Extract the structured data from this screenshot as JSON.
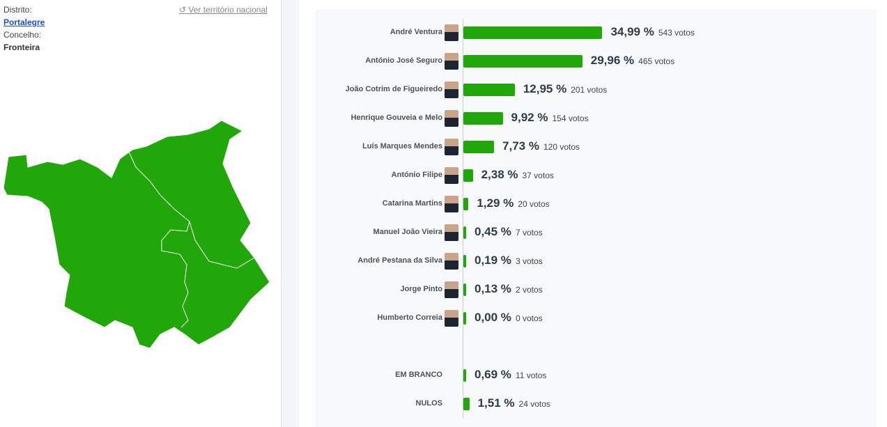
{
  "location": {
    "district_label": "Distrito:",
    "district": "Portalegre",
    "concelho_label": "Concelho:",
    "concelho": "Fronteira",
    "national_link": "Ver território nacional"
  },
  "colors": {
    "bar": "#22a70a",
    "map": "#22a70a",
    "link": "#1a4fd0"
  },
  "results": [
    {
      "name": "André Ventura",
      "pct": "34,99 %",
      "value": 34.99,
      "votes": "543 votos"
    },
    {
      "name": "António José Seguro",
      "pct": "29,96 %",
      "value": 29.96,
      "votes": "465 votos"
    },
    {
      "name": "João Cotrim de Figueiredo",
      "pct": "12,95 %",
      "value": 12.95,
      "votes": "201 votos"
    },
    {
      "name": "Henrique Gouveia e Melo",
      "pct": "9,92 %",
      "value": 9.92,
      "votes": "154 votos"
    },
    {
      "name": "Luís Marques Mendes",
      "pct": "7,73 %",
      "value": 7.73,
      "votes": "120 votos"
    },
    {
      "name": "António Filipe",
      "pct": "2,38 %",
      "value": 2.38,
      "votes": "37 votos"
    },
    {
      "name": "Catarina Martins",
      "pct": "1,29 %",
      "value": 1.29,
      "votes": "20 votos"
    },
    {
      "name": "Manuel João Vieira",
      "pct": "0,45 %",
      "value": 0.45,
      "votes": "7 votos"
    },
    {
      "name": "André Pestana da Silva",
      "pct": "0,19 %",
      "value": 0.19,
      "votes": "3 votos"
    },
    {
      "name": "Jorge Pinto",
      "pct": "0,13 %",
      "value": 0.13,
      "votes": "2 votos"
    },
    {
      "name": "Humberto Correia",
      "pct": "0,00 %",
      "value": 0,
      "votes": "0 votos"
    }
  ],
  "other": [
    {
      "name": "EM BRANCO",
      "pct": "0,69 %",
      "value": 0.69,
      "votes": "11 votos"
    },
    {
      "name": "NULOS",
      "pct": "1,51 %",
      "value": 1.51,
      "votes": "24 votos"
    }
  ]
}
